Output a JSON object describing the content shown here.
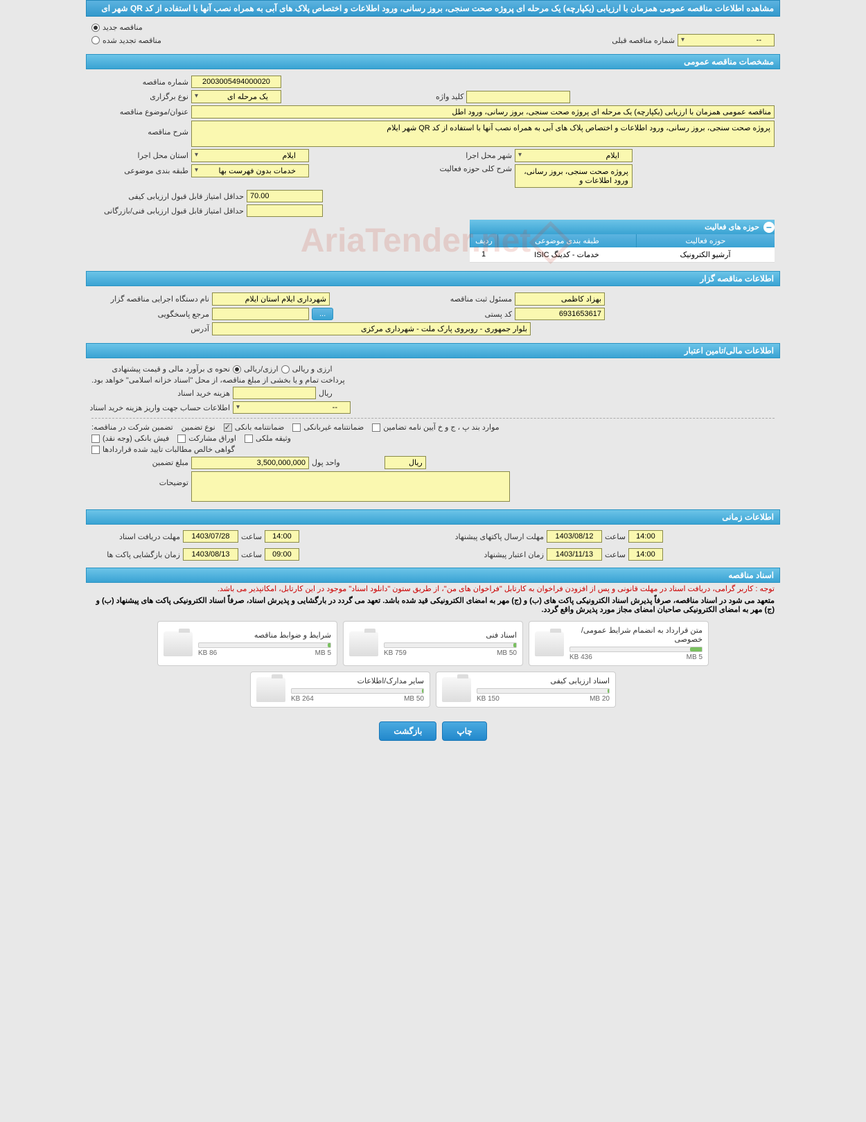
{
  "page_title": "مشاهده اطلاعات مناقصه عمومی همزمان با ارزیابی (یکپارچه) یک مرحله ای پروژه صحت سنجی، بروز رسانی، ورود اطلاعات و اختصاص پلاک های آبی به همراه نصب آنها با استفاده از کد QR شهر ای",
  "watermark": "AriaTender.net",
  "top_radios": {
    "new_label": "مناقصه جدید",
    "renew_label": "مناقصه تجدید شده",
    "selected": "new"
  },
  "prev_number": {
    "label": "شماره مناقصه قبلی",
    "value": "--"
  },
  "sections": {
    "general": "مشخصات مناقصه عمومی",
    "holder": "اطلاعات مناقصه گزار",
    "financial": "اطلاعات مالی/تامین اعتبار",
    "timing": "اطلاعات زمانی",
    "docs": "اسناد مناقصه"
  },
  "general": {
    "tender_no": {
      "label": "شماره مناقصه",
      "value": "2003005494000020"
    },
    "keyword": {
      "label": "کلید واژه",
      "value": ""
    },
    "hold_type": {
      "label": "نوع برگزاری",
      "value": "یک مرحله ای"
    },
    "subject": {
      "label": "عنوان/موضوع مناقصه",
      "value": "مناقصه عمومی همزمان با ارزیابی (یکپارچه) یک مرحله ای پروژه صحت سنجی، بروز رسانی، ورود اطل"
    },
    "description": {
      "label": "شرح مناقصه",
      "value": "پروژه صحت سنجی، بروز رسانی، ورود اطلاعات و اختصاص پلاک های آبی به همراه نصب آنها با استفاده از کد QR شهر ایلام"
    },
    "province": {
      "label": "استان محل اجرا",
      "value": "ایلام"
    },
    "city": {
      "label": "شهر محل اجرا",
      "value": "ایلام"
    },
    "category": {
      "label": "طبقه بندی موضوعی",
      "value": "خدمات بدون فهرست بها"
    },
    "activity_scope": {
      "label": "شرح کلی حوزه فعالیت",
      "value": "پروژه صحت سنجی، بروز رسانی، ورود اطلاعات و"
    },
    "min_qual_score": {
      "label": "حداقل امتیاز قابل قبول ارزیابی کیفی",
      "value": "70.00"
    },
    "min_tech_score": {
      "label": "حداقل امتیاز قابل قبول ارزیابی فنی/بازرگانی",
      "value": ""
    }
  },
  "activity_table": {
    "title": "حوزه های فعالیت",
    "cols": {
      "idx": "ردیف",
      "cat": "طبقه بندی موضوعی",
      "act": "حوزه فعالیت"
    },
    "rows": [
      {
        "idx": "1",
        "cat": "خدمات - کدینگ ISIC",
        "act": "آرشیو الکترونیک"
      }
    ]
  },
  "holder": {
    "org": {
      "label": "نام دستگاه اجرایی مناقصه گزار",
      "value": "شهرداری ایلام استان ایلام"
    },
    "reg_officer": {
      "label": "مسئول ثبت مناقصه",
      "value": "بهزاد کاظمی"
    },
    "responder": {
      "label": "مرجع پاسخگویی",
      "value": "",
      "btn": "..."
    },
    "postal": {
      "label": "کد پستی",
      "value": "6931653617"
    },
    "address": {
      "label": "آدرس",
      "value": "بلوار جمهوری - روبروی پارک ملت - شهرداری مرکزی"
    }
  },
  "financial": {
    "estimate_method": {
      "label": "نحوه ی برآورد مالی و قیمت پیشنهادی",
      "opt1": "ارزی/ریالی",
      "opt2": "ارزی و ریالی",
      "selected": "opt1"
    },
    "payment_note": "پرداخت تمام و یا بخشی از مبلغ مناقصه، از محل \"اسناد خزانه اسلامی\" خواهد بود.",
    "doc_fee": {
      "label": "هزینه خرید اسناد",
      "value": "",
      "unit": "ریال"
    },
    "account_info": {
      "label": "اطلاعات حساب جهت واریز هزینه خرید اسناد",
      "value": "--"
    },
    "guarantee": {
      "label": "تضمین شرکت در مناقصه:",
      "type_label": "نوع تضمین",
      "options": {
        "bank_guarantee": {
          "label": "ضمانتنامه بانکی",
          "checked": true,
          "disabled": true
        },
        "nonbank_guarantee": {
          "label": "ضمانتنامه غیربانکی",
          "checked": false
        },
        "items_bpj": {
          "label": "موارد بند پ ، ج و خ آیین نامه تضامین",
          "checked": false
        },
        "bank_receipt": {
          "label": "فیش بانکی (وجه نقد)",
          "checked": false
        },
        "securities": {
          "label": "اوراق مشارکت",
          "checked": false
        },
        "property_pledge": {
          "label": "وثیقه ملکی",
          "checked": false
        },
        "contract_cert": {
          "label": "گواهی خالص مطالبات تایید شده قراردادها",
          "checked": false
        }
      }
    },
    "guarantee_amount": {
      "label": "مبلغ تضمین",
      "value": "3,500,000,000",
      "unit_label": "واحد پول",
      "unit": "ریال"
    },
    "notes": {
      "label": "توضیحات",
      "value": ""
    }
  },
  "timing": {
    "receive_deadline": {
      "label": "مهلت دریافت اسناد",
      "date": "1403/07/28",
      "time_label": "ساعت",
      "time": "14:00"
    },
    "submit_deadline": {
      "label": "مهلت ارسال پاکتهای پیشنهاد",
      "date": "1403/08/12",
      "time_label": "ساعت",
      "time": "14:00"
    },
    "opening": {
      "label": "زمان بازگشایی پاکت ها",
      "date": "1403/08/13",
      "time_label": "ساعت",
      "time": "09:00"
    },
    "validity": {
      "label": "زمان اعتبار پیشنهاد",
      "date": "1403/11/13",
      "time_label": "ساعت",
      "time": "14:00"
    }
  },
  "docs": {
    "note_red": "توجه : کاربر گرامی، دریافت اسناد در مهلت قانونی و پس از افزودن فراخوان به کارتابل \"فراخوان های من\"، از طریق ستون \"دانلود اسناد\" موجود در این کارتابل، امکانپذیر می باشد.",
    "note_black": "متعهد می شود در اسناد مناقصه، صرفاً پذیرش اسناد الکترونیکی پاکت های (ب) و (ج) مهر به امضای الکترونیکی قید شده باشد. تعهد می گردد در بارگشایی و پذیرش اسناد، صرفاً اسناد الکترونیکی پاکت های پیشنهاد (ب) و (ج) مهر به امضای الکترونیکی صاحبان امضای مجاز مورد پذیرش واقع گردد.",
    "cards": [
      {
        "title": "شرایط و ضوابط مناقصه",
        "used": "86 KB",
        "max": "5 MB",
        "pct": 2
      },
      {
        "title": "اسناد فنی",
        "used": "759 KB",
        "max": "50 MB",
        "pct": 2
      },
      {
        "title": "متن قرارداد به انضمام شرایط عمومی/خصوصی",
        "used": "436 KB",
        "max": "5 MB",
        "pct": 9
      },
      {
        "title": "سایر مدارک/اطلاعات",
        "used": "264 KB",
        "max": "50 MB",
        "pct": 1
      },
      {
        "title": "اسناد ارزیابی کیفی",
        "used": "150 KB",
        "max": "20 MB",
        "pct": 1
      }
    ]
  },
  "footer": {
    "print": "چاپ",
    "back": "بازگشت"
  },
  "colors": {
    "header_bg_top": "#6cc4e8",
    "header_bg_bot": "#3aa3d3",
    "field_bg": "#faf8b0",
    "page_bg": "#e8e8e8"
  }
}
